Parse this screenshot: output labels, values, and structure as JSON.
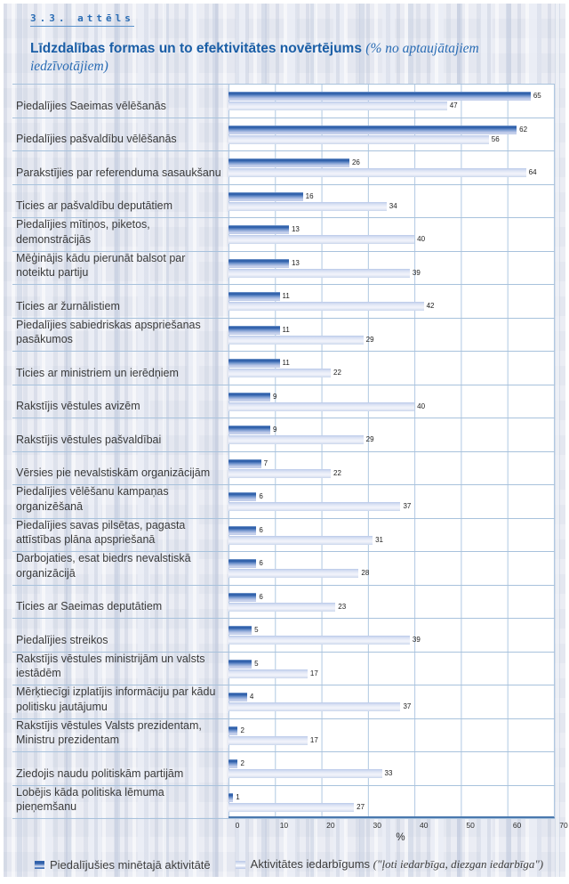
{
  "figure": {
    "label": "3.3. attēls"
  },
  "title": {
    "bold": "Līdzdalības formas un to efektivitātes novērtējums",
    "italic": "(% no aptaujātajiem iedzīvotājiem)"
  },
  "axis": {
    "ticks": [
      "0",
      "10",
      "20",
      "30",
      "40",
      "50",
      "60",
      "70"
    ],
    "max": 70,
    "unit_label": "%"
  },
  "legend": {
    "series1_label": "Piedalījušies minētajā aktivitātē",
    "series2_label_prefix": "Aktivitātes iedarbīgums ",
    "series2_label_italic": "(\"ļoti iedarbīga, diezgan iedarbīga\")"
  },
  "colors": {
    "title_blue": "#1a5ea6",
    "bar_dark": "#3565ad",
    "bar_light": "#dce4f4",
    "gridline": "#b0c8e2",
    "row_separator": "#a8c2dc",
    "axis_line": "#4a79ae"
  },
  "chart_data": {
    "type": "bar",
    "orientation": "horizontal",
    "title": "Līdzdalības formas un to efektivitātes novērtējums (% no aptaujātajiem iedzīvotājiem)",
    "xlabel": "%",
    "xlim": [
      0,
      70
    ],
    "grid": true,
    "legend_position": "bottom",
    "categories": [
      "Piedalījies Saeimas vēlēšanās",
      "Piedalījies pašvaldību vēlēšanās",
      "Parakstījies par referenduma sasaukšanu",
      "Ticies ar pašvaldību deputātiem",
      "Piedalījies mītiņos, piketos, demonstrācijās",
      "Mēģinājis kādu pierunāt balsot par noteiktu partiju",
      "Ticies ar žurnālistiem",
      "Piedalījies sabiedriskas apspriešanas pasākumos",
      "Ticies ar ministriem un ierēdņiem",
      "Rakstījis vēstules avizēm",
      "Rakstījis vēstules pašvaldībai",
      "Vērsies pie nevalstiskām organizācijām",
      "Piedalījies vēlēšanu kampaņas organizēšanā",
      "Piedalījies savas pilsētas, pagasta attīstības plāna apspriešanā",
      "Darbojaties, esat biedrs nevalstiskā organizācijā",
      "Ticies ar Saeimas deputātiem",
      "Piedalījies streikos",
      "Rakstījis vēstules ministrijām un valsts iestādēm",
      "Mērķtiecīgi izplatījis informāciju par kādu politisku jautājumu",
      "Rakstījis vēstules Valsts prezidentam, Ministru prezidentam",
      "Ziedojis naudu politiskām partijām",
      "Lobējis kāda politiska lēmuma pieņemšanu"
    ],
    "series": [
      {
        "name": "Piedalījušies minētajā aktivitātē",
        "values": [
          65,
          62,
          26,
          16,
          13,
          13,
          11,
          11,
          11,
          9,
          9,
          7,
          6,
          6,
          6,
          6,
          5,
          5,
          4,
          2,
          2,
          1
        ]
      },
      {
        "name": "Aktivitātes iedarbīgums (\"ļoti iedarbīga, diezgan iedarbīga\")",
        "values": [
          47,
          56,
          64,
          34,
          40,
          39,
          42,
          29,
          22,
          40,
          29,
          22,
          37,
          31,
          28,
          23,
          39,
          17,
          37,
          17,
          33,
          27
        ]
      }
    ]
  }
}
